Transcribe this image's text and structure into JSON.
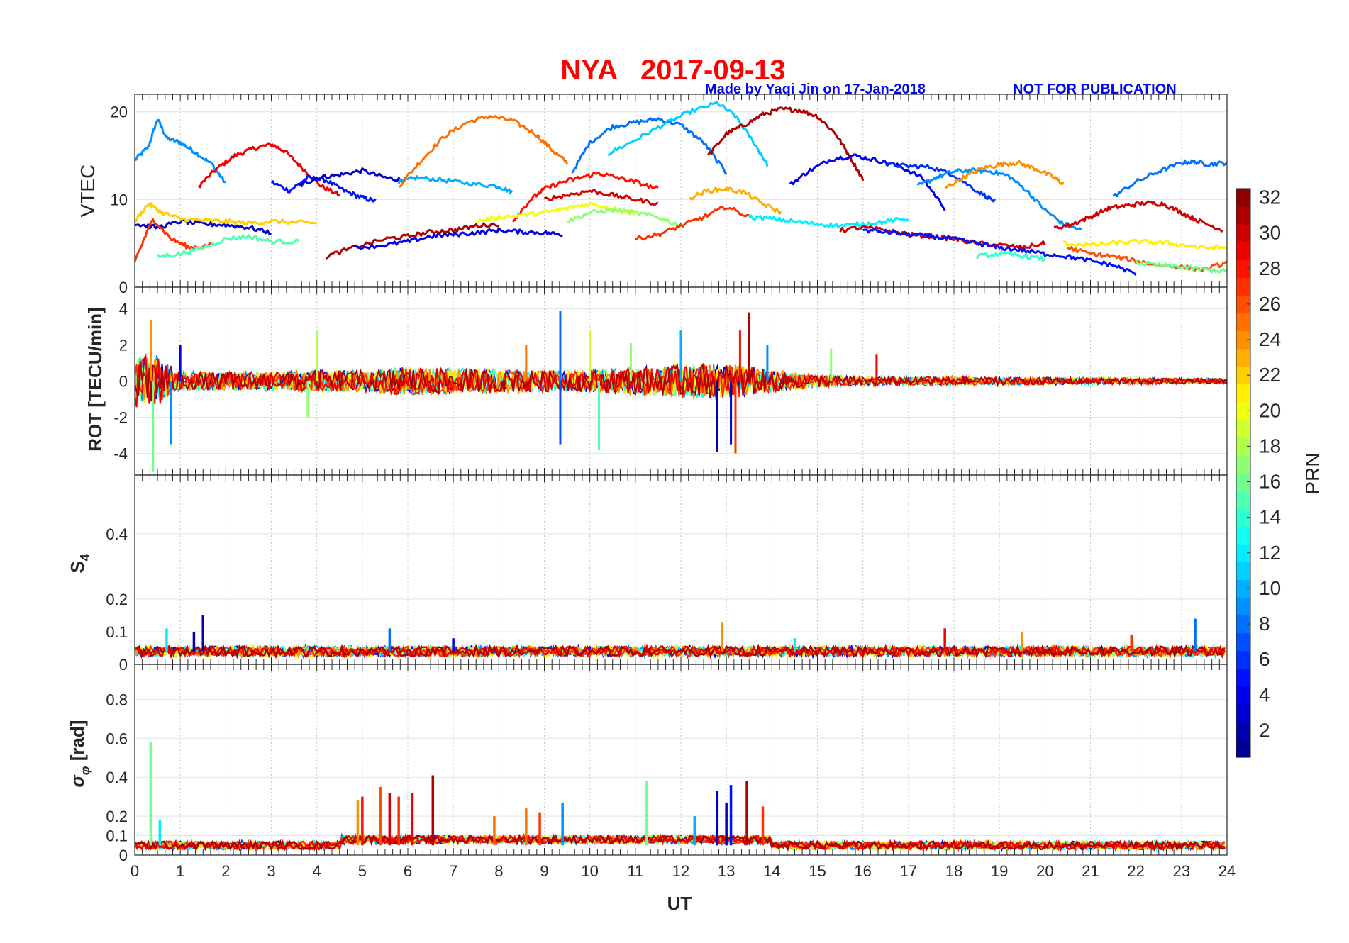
{
  "header": {
    "title": "NYA   2017-09-13",
    "credit": "Made by Yaqi Jin on 17-Jan-2018",
    "notice": "NOT FOR PUBLICATION",
    "title_color": "#ff0000",
    "credit_color": "#0000ff"
  },
  "colorbar": {
    "label": "PRN",
    "range": [
      1,
      32
    ],
    "ticks": [
      "2",
      "4",
      "6",
      "8",
      "10",
      "12",
      "14",
      "16",
      "18",
      "20",
      "22",
      "24",
      "26",
      "28",
      "30",
      "32"
    ],
    "colormap": "jet"
  },
  "chart_data": [
    {
      "type": "line",
      "panel": "vtec",
      "ylabel": "VTEC",
      "ylim": [
        0,
        22
      ],
      "yticks": [
        "0",
        "10",
        "20"
      ],
      "xlim": [
        0,
        24
      ],
      "grid": true,
      "series": [
        {
          "prn": 9,
          "x": [
            0,
            0.3,
            0.5,
            0.7,
            1.0,
            1.3,
            1.7,
            2.0
          ],
          "y": [
            14.5,
            16,
            19.2,
            17,
            16.5,
            15.5,
            14,
            11.8
          ]
        },
        {
          "prn": 29,
          "x": [
            1.4,
            1.8,
            2.2,
            2.6,
            3.0,
            3.3,
            3.7,
            4.1,
            4.5
          ],
          "y": [
            11.5,
            13.5,
            15,
            15.8,
            16.3,
            15.5,
            13.5,
            11.5,
            10.5
          ]
        },
        {
          "prn": 5,
          "x": [
            3.0,
            3.4,
            3.8,
            4.2,
            4.6,
            5.0,
            5.3
          ],
          "y": [
            12,
            11,
            12.5,
            12.2,
            11,
            10.2,
            9.8
          ]
        },
        {
          "prn": 3,
          "x": [
            3.6,
            4.0,
            4.5,
            5.0,
            5.5,
            5.9
          ],
          "y": [
            11.5,
            12.5,
            12.8,
            13.3,
            12.5,
            12.2
          ]
        },
        {
          "prn": 10,
          "x": [
            5.8,
            6.2,
            6.8,
            7.4,
            8.0,
            8.3
          ],
          "y": [
            12,
            12.5,
            12.2,
            11.8,
            11.5,
            10.8
          ]
        },
        {
          "prn": 25,
          "x": [
            5.8,
            6.3,
            6.8,
            7.3,
            7.8,
            8.3,
            8.8,
            9.2,
            9.5
          ],
          "y": [
            11.5,
            14.5,
            17.2,
            18.8,
            19.5,
            19,
            17.5,
            15.5,
            14.2
          ]
        },
        {
          "prn": 8,
          "x": [
            9.6,
            10.0,
            10.5,
            11.0,
            11.5,
            12.0,
            12.5,
            13.0
          ],
          "y": [
            13,
            16.5,
            18.3,
            18.8,
            19.2,
            18.5,
            16.5,
            13
          ]
        },
        {
          "prn": 11,
          "x": [
            10.4,
            11.0,
            11.6,
            12.2,
            12.8,
            13.2,
            13.6,
            13.9
          ],
          "y": [
            15.2,
            16.8,
            18.5,
            20,
            21,
            19.5,
            16.5,
            14
          ]
        },
        {
          "prn": 31,
          "x": [
            12.6,
            13.0,
            13.4,
            13.8,
            14.2,
            14.6,
            15.0,
            15.4,
            15.7,
            16.0
          ],
          "y": [
            15,
            17.5,
            18.5,
            19.7,
            20.3,
            20.2,
            19.5,
            17.5,
            15,
            12.3
          ]
        },
        {
          "prn": 4,
          "x": [
            14.4,
            14.8,
            15.3,
            15.8,
            16.3,
            16.8,
            17.3,
            17.8
          ],
          "y": [
            11.7,
            13.2,
            14.6,
            15,
            14.5,
            13.8,
            12.5,
            9
          ]
        },
        {
          "prn": 6,
          "x": [
            16.5,
            17.0,
            17.5,
            18.0,
            18.5,
            18.9
          ],
          "y": [
            14,
            13.8,
            13.7,
            12.8,
            11,
            9.8
          ]
        },
        {
          "prn": 9,
          "x": [
            17.2,
            17.6,
            18.0,
            18.4,
            18.8,
            19.2,
            19.6,
            20.0,
            20.4,
            20.8
          ],
          "y": [
            11.5,
            12.5,
            13.2,
            13.3,
            13.2,
            12.7,
            11,
            8.8,
            7.2,
            6.5
          ]
        },
        {
          "prn": 24,
          "x": [
            17.8,
            18.2,
            18.6,
            19.0,
            19.4,
            19.8,
            20.2,
            20.4
          ],
          "y": [
            11.3,
            12.5,
            13.5,
            14,
            14.2,
            13.5,
            12.5,
            11.8
          ]
        },
        {
          "prn": 8,
          "x": [
            21.5,
            22.0,
            22.5,
            23.0,
            23.3,
            23.6,
            24.0
          ],
          "y": [
            10.3,
            12,
            13.2,
            14.2,
            14.3,
            14,
            14.2
          ]
        },
        {
          "prn": 30,
          "x": [
            20.2,
            20.6,
            21.0,
            21.4,
            21.8,
            22.2,
            22.6,
            23.0,
            23.4,
            23.9
          ],
          "y": [
            6.7,
            7.2,
            8,
            9,
            9.3,
            9.6,
            9.5,
            8.5,
            7.5,
            6.5
          ]
        },
        {
          "prn": 3,
          "x": [
            0,
            0.5,
            1.0,
            1.5,
            2.0,
            2.5,
            3.0
          ],
          "y": [
            7.2,
            6.8,
            7.5,
            7.2,
            7.1,
            6.8,
            6.2
          ]
        },
        {
          "prn": 22,
          "x": [
            0,
            0.3,
            0.6,
            1.0,
            1.5,
            2.0,
            2.5,
            3.0,
            3.5,
            4.0
          ],
          "y": [
            7.5,
            9.5,
            8.5,
            7.8,
            7.6,
            7.5,
            7.3,
            7.5,
            7.4,
            7.3
          ]
        },
        {
          "prn": 27,
          "x": [
            0,
            0.4,
            0.8,
            1.2,
            1.7
          ],
          "y": [
            3,
            7.8,
            5.5,
            4.5,
            4.8
          ]
        },
        {
          "prn": 15,
          "x": [
            0.5,
            1.0,
            1.5,
            2.0,
            2.5,
            3.0,
            3.6
          ],
          "y": [
            3.5,
            3.8,
            4.5,
            5.5,
            5.8,
            5.2,
            5.2
          ]
        },
        {
          "prn": 31,
          "x": [
            4.2,
            4.8,
            5.5,
            6.0,
            6.5,
            7.0,
            7.5,
            8.0
          ],
          "y": [
            3.5,
            4.5,
            5.5,
            5.8,
            6.3,
            6.5,
            7,
            7.2
          ]
        },
        {
          "prn": 4,
          "x": [
            4.8,
            5.5,
            6.0,
            6.5,
            7.0,
            7.5,
            8.0,
            8.5,
            9.0,
            9.4
          ],
          "y": [
            4.5,
            4.8,
            5.2,
            5.8,
            6,
            6.2,
            6.5,
            6.3,
            6.2,
            6
          ]
        },
        {
          "prn": 28,
          "x": [
            8.3,
            8.7,
            9.0,
            9.4,
            9.8,
            10.2,
            10.6,
            11.0,
            11.5
          ],
          "y": [
            7.5,
            10,
            11.2,
            12,
            12.5,
            13,
            12.5,
            12,
            11.2
          ]
        },
        {
          "prn": 30,
          "x": [
            9.0,
            9.5,
            10.0,
            10.5,
            11.0,
            11.5
          ],
          "y": [
            10,
            10.5,
            11,
            10.5,
            10,
            9.5
          ]
        },
        {
          "prn": 20,
          "x": [
            7.5,
            8.0,
            8.5,
            9.0,
            9.5,
            10.0,
            10.5,
            11.0
          ],
          "y": [
            7.5,
            8,
            8.2,
            8.5,
            9,
            9.5,
            9,
            8.5
          ]
        },
        {
          "prn": 17,
          "x": [
            9.5,
            10.0,
            10.5,
            11.0,
            11.5,
            12.0
          ],
          "y": [
            7.5,
            8.5,
            8.8,
            8.5,
            8,
            7
          ]
        },
        {
          "prn": 27,
          "x": [
            11.0,
            11.5,
            12.0,
            12.5,
            13.0,
            13.5
          ],
          "y": [
            5.5,
            6,
            7,
            8,
            9.2,
            8
          ]
        },
        {
          "prn": 23,
          "x": [
            12.2,
            12.6,
            13.0,
            13.4,
            13.8,
            14.2
          ],
          "y": [
            10.2,
            11,
            11.2,
            10.8,
            9.5,
            8.5
          ]
        },
        {
          "prn": 12,
          "x": [
            13.5,
            14.0,
            14.5,
            15.0,
            15.5,
            16.0,
            16.5,
            17.0
          ],
          "y": [
            8,
            7.8,
            7.5,
            7.2,
            7,
            7.2,
            7.5,
            7.8
          ]
        },
        {
          "prn": 30,
          "x": [
            15.5,
            16.0,
            16.5,
            17.0,
            17.5,
            18.0,
            18.5,
            19.0,
            19.5,
            20.0
          ],
          "y": [
            6.5,
            6.8,
            6.5,
            6,
            5.8,
            5.5,
            5,
            4.8,
            4.5,
            5
          ]
        },
        {
          "prn": 5,
          "x": [
            16.0,
            16.5,
            17.0,
            17.5,
            18.0,
            18.5,
            19.0,
            19.5,
            20.0,
            20.5,
            21.0,
            21.5,
            22.0
          ],
          "y": [
            6.5,
            6.3,
            6,
            5.8,
            5.5,
            5,
            4.5,
            4.2,
            3.8,
            3.5,
            3,
            2.5,
            1.5
          ]
        },
        {
          "prn": 21,
          "x": [
            20.4,
            21.0,
            21.5,
            22.0,
            22.5,
            23.0,
            23.5,
            24.0
          ],
          "y": [
            5,
            4.8,
            5,
            5.2,
            5.1,
            4.8,
            4.5,
            4.5
          ]
        },
        {
          "prn": 26,
          "x": [
            20.5,
            21.0,
            21.5,
            22.0,
            22.5,
            23.0,
            23.5,
            24.0
          ],
          "y": [
            4.5,
            3.8,
            3.5,
            3,
            2.5,
            2.3,
            2,
            2.8
          ]
        },
        {
          "prn": 14,
          "x": [
            18.5,
            19.0,
            19.5,
            20.0
          ],
          "y": [
            3.5,
            3.8,
            3.6,
            3.2
          ]
        },
        {
          "prn": 16,
          "x": [
            22.0,
            22.5,
            23.0,
            23.5,
            24.0
          ],
          "y": [
            2.8,
            2.5,
            2.3,
            2,
            1.8
          ]
        }
      ]
    },
    {
      "type": "line",
      "panel": "rot",
      "ylabel": "ROT [TECU/min]",
      "ylim": [
        -5.2,
        5.2
      ],
      "yticks": [
        "-4",
        "-2",
        "0",
        "2",
        "4"
      ],
      "xlim": [
        0,
        24
      ],
      "grid": true,
      "noise_profile": {
        "hours": [
          0,
          0.5,
          1,
          3,
          4,
          5,
          6,
          7,
          9,
          10,
          12,
          13,
          14,
          15,
          16,
          24
        ],
        "amplitude": [
          1.5,
          1.4,
          0.5,
          0.5,
          0.6,
          0.6,
          0.8,
          0.7,
          0.6,
          0.6,
          0.9,
          1.0,
          0.6,
          0.35,
          0.25,
          0.15
        ]
      },
      "spikes": [
        {
          "x": 0.35,
          "y": 3.4,
          "prn": 24
        },
        {
          "x": 0.4,
          "y": -5.0,
          "prn": 16
        },
        {
          "x": 0.8,
          "y": -3.5,
          "prn": 9
        },
        {
          "x": 1.0,
          "y": 2.0,
          "prn": 4
        },
        {
          "x": 4.0,
          "y": 2.8,
          "prn": 18
        },
        {
          "x": 3.8,
          "y": -2.0,
          "prn": 17
        },
        {
          "x": 8.6,
          "y": 2.0,
          "prn": 25
        },
        {
          "x": 9.35,
          "y": 3.9,
          "prn": 8
        },
        {
          "x": 9.35,
          "y": -3.5,
          "prn": 7
        },
        {
          "x": 10.0,
          "y": 2.8,
          "prn": 19
        },
        {
          "x": 10.2,
          "y": -3.8,
          "prn": 15
        },
        {
          "x": 10.9,
          "y": 2.1,
          "prn": 17
        },
        {
          "x": 12.0,
          "y": 2.8,
          "prn": 10
        },
        {
          "x": 12.8,
          "y": -3.9,
          "prn": 2
        },
        {
          "x": 13.1,
          "y": -3.5,
          "prn": 3
        },
        {
          "x": 13.3,
          "y": 2.8,
          "prn": 28
        },
        {
          "x": 13.5,
          "y": 3.8,
          "prn": 31
        },
        {
          "x": 13.2,
          "y": -4.0,
          "prn": 27
        },
        {
          "x": 13.9,
          "y": 2.0,
          "prn": 9
        },
        {
          "x": 15.3,
          "y": 1.8,
          "prn": 17
        },
        {
          "x": 16.3,
          "y": 1.5,
          "prn": 29
        }
      ]
    },
    {
      "type": "line",
      "panel": "s4",
      "ylabel": "S4",
      "ylim": [
        0,
        0.58
      ],
      "yticks": [
        "0",
        "0.1",
        "0.2",
        "0.4"
      ],
      "xlim": [
        0,
        24
      ],
      "grid": true,
      "spikes": [
        {
          "x": 0.7,
          "y": 0.11,
          "prn": 12
        },
        {
          "x": 1.3,
          "y": 0.1,
          "prn": 2
        },
        {
          "x": 1.5,
          "y": 0.15,
          "prn": 2
        },
        {
          "x": 5.6,
          "y": 0.11,
          "prn": 8
        },
        {
          "x": 7.0,
          "y": 0.08,
          "prn": 4
        },
        {
          "x": 12.9,
          "y": 0.13,
          "prn": 24
        },
        {
          "x": 14.5,
          "y": 0.08,
          "prn": 12
        },
        {
          "x": 17.8,
          "y": 0.11,
          "prn": 29
        },
        {
          "x": 19.5,
          "y": 0.1,
          "prn": 24
        },
        {
          "x": 21.9,
          "y": 0.09,
          "prn": 27
        },
        {
          "x": 23.3,
          "y": 0.14,
          "prn": 8
        }
      ]
    },
    {
      "type": "line",
      "panel": "sigma_phi",
      "ylabel": "σ_φ [rad]",
      "ylim": [
        0,
        0.98
      ],
      "yticks": [
        "0",
        "0.1",
        "0.2",
        "0.4",
        "0.6",
        "0.8"
      ],
      "xlim": [
        0,
        24
      ],
      "grid": true,
      "spikes": [
        {
          "x": 0.35,
          "y": 0.58,
          "prn": 16
        },
        {
          "x": 0.55,
          "y": 0.18,
          "prn": 12
        },
        {
          "x": 4.9,
          "y": 0.28,
          "prn": 24
        },
        {
          "x": 5.0,
          "y": 0.3,
          "prn": 28
        },
        {
          "x": 5.4,
          "y": 0.35,
          "prn": 26
        },
        {
          "x": 5.6,
          "y": 0.32,
          "prn": 30
        },
        {
          "x": 5.8,
          "y": 0.3,
          "prn": 27
        },
        {
          "x": 6.1,
          "y": 0.32,
          "prn": 29
        },
        {
          "x": 6.55,
          "y": 0.41,
          "prn": 31
        },
        {
          "x": 7.9,
          "y": 0.2,
          "prn": 25
        },
        {
          "x": 8.6,
          "y": 0.24,
          "prn": 25
        },
        {
          "x": 8.9,
          "y": 0.22,
          "prn": 27
        },
        {
          "x": 9.4,
          "y": 0.27,
          "prn": 9
        },
        {
          "x": 11.25,
          "y": 0.38,
          "prn": 16
        },
        {
          "x": 12.3,
          "y": 0.2,
          "prn": 10
        },
        {
          "x": 12.8,
          "y": 0.33,
          "prn": 3
        },
        {
          "x": 13.0,
          "y": 0.27,
          "prn": 2
        },
        {
          "x": 13.1,
          "y": 0.36,
          "prn": 5
        },
        {
          "x": 13.45,
          "y": 0.38,
          "prn": 31
        },
        {
          "x": 13.8,
          "y": 0.25,
          "prn": 27
        }
      ]
    }
  ],
  "x_axis": {
    "label": "UT",
    "ticks": [
      "0",
      "1",
      "2",
      "3",
      "4",
      "5",
      "6",
      "7",
      "8",
      "9",
      "10",
      "11",
      "12",
      "13",
      "14",
      "15",
      "16",
      "17",
      "18",
      "19",
      "20",
      "21",
      "22",
      "23",
      "24"
    ]
  }
}
